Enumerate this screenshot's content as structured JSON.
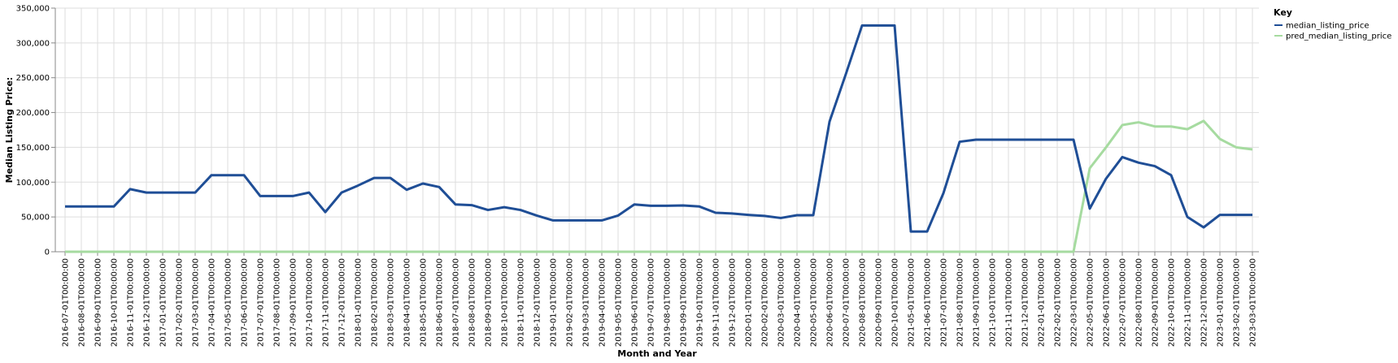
{
  "chart_data": {
    "type": "line",
    "xlabel": "Month and Year",
    "ylabel": "Median Listing Price:",
    "ylim": [
      0,
      350000
    ],
    "y_ticks": [
      0,
      50000,
      100000,
      150000,
      200000,
      250000,
      300000,
      350000
    ],
    "y_tick_labels": [
      "0",
      "50,000",
      "100,000",
      "150,000",
      "200,000",
      "250,000",
      "300,000",
      "350,000"
    ],
    "grid": true,
    "legend": {
      "title": "Key",
      "placement": "top-right"
    },
    "x": [
      "2016-07-01T00:00:00",
      "2016-08-01T00:00:00",
      "2016-09-01T00:00:00",
      "2016-10-01T00:00:00",
      "2016-11-01T00:00:00",
      "2016-12-01T00:00:00",
      "2017-01-01T00:00:00",
      "2017-02-01T00:00:00",
      "2017-03-01T00:00:00",
      "2017-04-01T00:00:00",
      "2017-05-01T00:00:00",
      "2017-06-01T00:00:00",
      "2017-07-01T00:00:00",
      "2017-08-01T00:00:00",
      "2017-09-01T00:00:00",
      "2017-10-01T00:00:00",
      "2017-11-01T00:00:00",
      "2017-12-01T00:00:00",
      "2018-01-01T00:00:00",
      "2018-02-01T00:00:00",
      "2018-03-01T00:00:00",
      "2018-04-01T00:00:00",
      "2018-05-01T00:00:00",
      "2018-06-01T00:00:00",
      "2018-07-01T00:00:00",
      "2018-08-01T00:00:00",
      "2018-09-01T00:00:00",
      "2018-10-01T00:00:00",
      "2018-11-01T00:00:00",
      "2018-12-01T00:00:00",
      "2019-01-01T00:00:00",
      "2019-02-01T00:00:00",
      "2019-03-01T00:00:00",
      "2019-04-01T00:00:00",
      "2019-05-01T00:00:00",
      "2019-06-01T00:00:00",
      "2019-07-01T00:00:00",
      "2019-08-01T00:00:00",
      "2019-09-01T00:00:00",
      "2019-10-01T00:00:00",
      "2019-11-01T00:00:00",
      "2019-12-01T00:00:00",
      "2020-01-01T00:00:00",
      "2020-02-01T00:00:00",
      "2020-03-01T00:00:00",
      "2020-04-01T00:00:00",
      "2020-05-01T00:00:00",
      "2020-06-01T00:00:00",
      "2020-07-01T00:00:00",
      "2020-08-01T00:00:00",
      "2020-09-01T00:00:00",
      "2020-10-01T00:00:00",
      "2021-05-01T00:00:00",
      "2021-06-01T00:00:00",
      "2021-07-01T00:00:00",
      "2021-08-01T00:00:00",
      "2021-09-01T00:00:00",
      "2021-10-01T00:00:00",
      "2021-11-01T00:00:00",
      "2021-12-01T00:00:00",
      "2022-01-01T00:00:00",
      "2022-02-01T00:00:00",
      "2022-03-01T00:00:00",
      "2022-05-01T00:00:00",
      "2022-06-01T00:00:00",
      "2022-07-01T00:00:00",
      "2022-08-01T00:00:00",
      "2022-09-01T00:00:00",
      "2022-10-01T00:00:00",
      "2022-11-01T00:00:00",
      "2022-12-01T00:00:00",
      "2023-01-01T00:00:00",
      "2023-02-01T00:00:00",
      "2023-03-01T00:00:00"
    ],
    "series": [
      {
        "name": "median_listing_price",
        "color": "#1f4e96",
        "values": [
          65000,
          65000,
          65000,
          65000,
          90000,
          85000,
          85000,
          85000,
          85000,
          110000,
          110000,
          110000,
          80000,
          80000,
          80000,
          85000,
          57000,
          85000,
          95000,
          106000,
          106000,
          89000,
          98000,
          93000,
          68000,
          67000,
          60000,
          64000,
          60000,
          52000,
          45000,
          45000,
          45000,
          45000,
          52000,
          68000,
          66000,
          66000,
          66500,
          65000,
          56000,
          55000,
          53000,
          51500,
          48500,
          52500,
          52500,
          187000,
          255000,
          325000,
          325000,
          325000,
          29000,
          29000,
          84000,
          158000,
          161000,
          161000,
          161000,
          161000,
          161000,
          161000,
          161000,
          62000,
          105000,
          136000,
          128000,
          123000,
          110000,
          50000,
          35000,
          53000,
          53000,
          53000
        ]
      },
      {
        "name": "pred_median_listing_price",
        "color": "#a6dba0",
        "values": [
          0,
          0,
          0,
          0,
          0,
          0,
          0,
          0,
          0,
          0,
          0,
          0,
          0,
          0,
          0,
          0,
          0,
          0,
          0,
          0,
          0,
          0,
          0,
          0,
          0,
          0,
          0,
          0,
          0,
          0,
          0,
          0,
          0,
          0,
          0,
          0,
          0,
          0,
          0,
          0,
          0,
          0,
          0,
          0,
          0,
          0,
          0,
          0,
          0,
          0,
          0,
          0,
          0,
          0,
          0,
          0,
          0,
          0,
          0,
          0,
          0,
          0,
          0,
          120000,
          150000,
          182000,
          186000,
          180000,
          180000,
          176000,
          188000,
          162000,
          150000,
          147000
        ]
      }
    ]
  }
}
